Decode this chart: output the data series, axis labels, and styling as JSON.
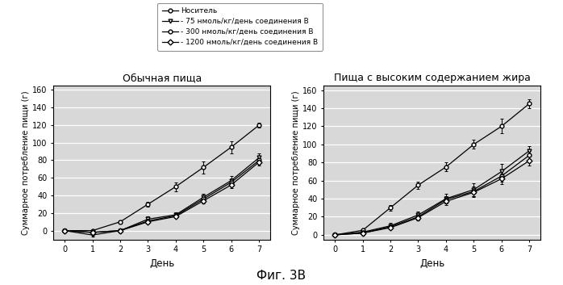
{
  "title_left": "Обычная пища",
  "title_right": "Пища с высоким содержанием жира",
  "xlabel": "День",
  "ylabel": "Суммарное потребление пищи (г)",
  "fig_label": "Фиг. 3В",
  "legend_labels": [
    "Носитель",
    "- 75 нмоль/кг/день соединения В",
    "- 300 нмоль/кг/день соединения В",
    "- 1200 нмоль/кг/день соединения В"
  ],
  "days": [
    0,
    1,
    2,
    3,
    4,
    5,
    6,
    7
  ],
  "left_data": {
    "carrier": [
      0,
      0,
      10,
      30,
      50,
      72,
      95,
      120
    ],
    "dose75": [
      0,
      -5,
      0,
      13,
      18,
      38,
      57,
      83
    ],
    "dose300": [
      0,
      -2,
      0,
      11,
      17,
      36,
      55,
      80
    ],
    "dose1200": [
      0,
      -2,
      0,
      10,
      16,
      34,
      52,
      78
    ]
  },
  "left_err": {
    "carrier": [
      0,
      1,
      2,
      3,
      5,
      7,
      7,
      3
    ],
    "dose75": [
      0,
      2,
      2,
      3,
      3,
      4,
      5,
      5
    ],
    "dose300": [
      0,
      1,
      1,
      2,
      2,
      3,
      4,
      4
    ],
    "dose1200": [
      0,
      1,
      1,
      2,
      2,
      3,
      4,
      4
    ]
  },
  "right_data": {
    "carrier": [
      0,
      5,
      30,
      55,
      75,
      100,
      120,
      145
    ],
    "dose75": [
      0,
      3,
      10,
      22,
      40,
      50,
      70,
      93
    ],
    "dose300": [
      0,
      2,
      9,
      20,
      39,
      48,
      65,
      88
    ],
    "dose1200": [
      0,
      2,
      8,
      19,
      37,
      47,
      62,
      82
    ]
  },
  "right_err": {
    "carrier": [
      0,
      1,
      3,
      4,
      5,
      5,
      8,
      5
    ],
    "dose75": [
      0,
      1,
      3,
      4,
      5,
      7,
      8,
      5
    ],
    "dose300": [
      0,
      1,
      2,
      3,
      4,
      5,
      6,
      5
    ],
    "dose1200": [
      0,
      1,
      2,
      3,
      4,
      5,
      6,
      5
    ]
  },
  "ylim_left": [
    -10,
    165
  ],
  "ylim_right": [
    -5,
    165
  ],
  "yticks": [
    0,
    20,
    40,
    60,
    80,
    100,
    120,
    140,
    160
  ],
  "bg_color": "#d8d8d8",
  "line_color": "#000000",
  "markers": [
    "o",
    "v",
    "o",
    "D"
  ],
  "marker_size": 3.5,
  "linewidth": 0.9
}
